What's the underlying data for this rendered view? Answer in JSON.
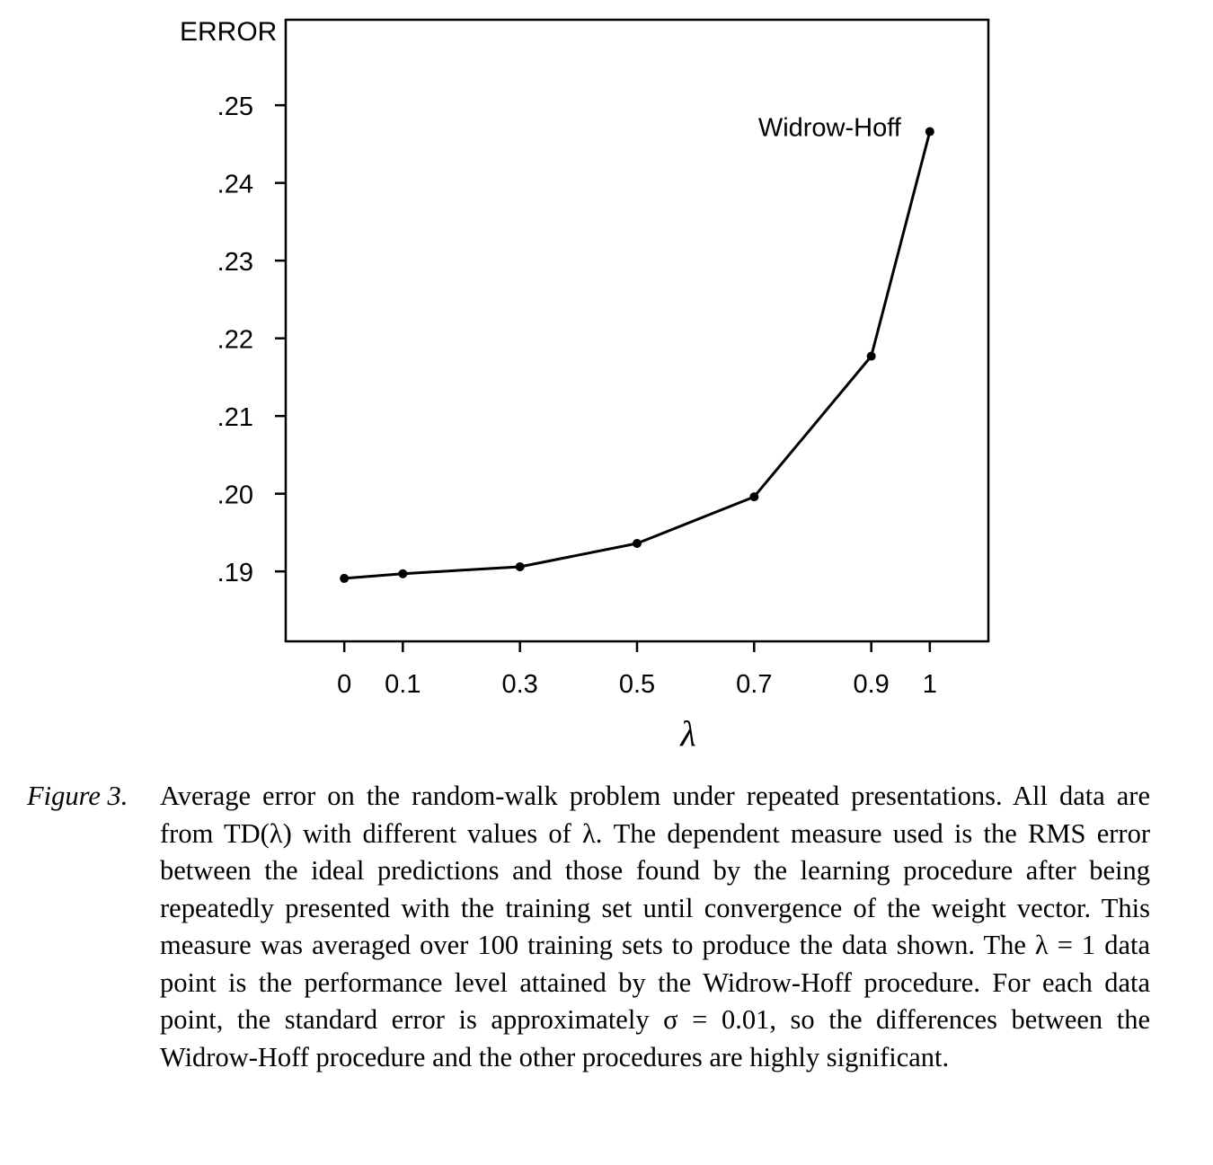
{
  "chart_data": {
    "type": "line",
    "title": "",
    "ylabel": "ERROR",
    "xlabel": "λ",
    "x": [
      0,
      0.1,
      0.3,
      0.5,
      0.7,
      0.9,
      1
    ],
    "x_tick_labels": [
      "0",
      "0.1",
      "0.3",
      "0.5",
      "0.7",
      "0.9",
      "1"
    ],
    "y_ticks": [
      0.19,
      0.2,
      0.21,
      0.22,
      0.23,
      0.24,
      0.25
    ],
    "y_tick_labels": [
      ".19",
      ".20",
      ".21",
      ".22",
      ".23",
      ".24",
      ".25"
    ],
    "xlim": [
      -0.1,
      1.1
    ],
    "ylim": [
      0.181,
      0.261
    ],
    "series": [
      {
        "values": [
          0.1891,
          0.1897,
          0.1906,
          0.1936,
          0.1996,
          0.2177,
          0.2466
        ],
        "color": "#000000"
      }
    ],
    "annotations": [
      {
        "text": "Widrow-Hoff",
        "x": 1,
        "y": 0.2466
      }
    ],
    "grid": false,
    "legend": "none"
  },
  "caption": {
    "label": "Figure 3.",
    "text": "Average error on the random-walk problem under repeated presentations. All data are from TD(λ) with different values of λ. The dependent measure used is the RMS error between the ideal predictions and those found by the learning procedure after being repeatedly presented with the training set until convergence of the weight vector. This measure was averaged over 100 training sets to produce the data shown. The λ = 1 data point is the performance level attained by the Widrow-Hoff procedure. For each data point, the standard error is approximately σ = 0.01, so the differences between the Widrow-Hoff procedure and the other procedures are highly significant."
  }
}
